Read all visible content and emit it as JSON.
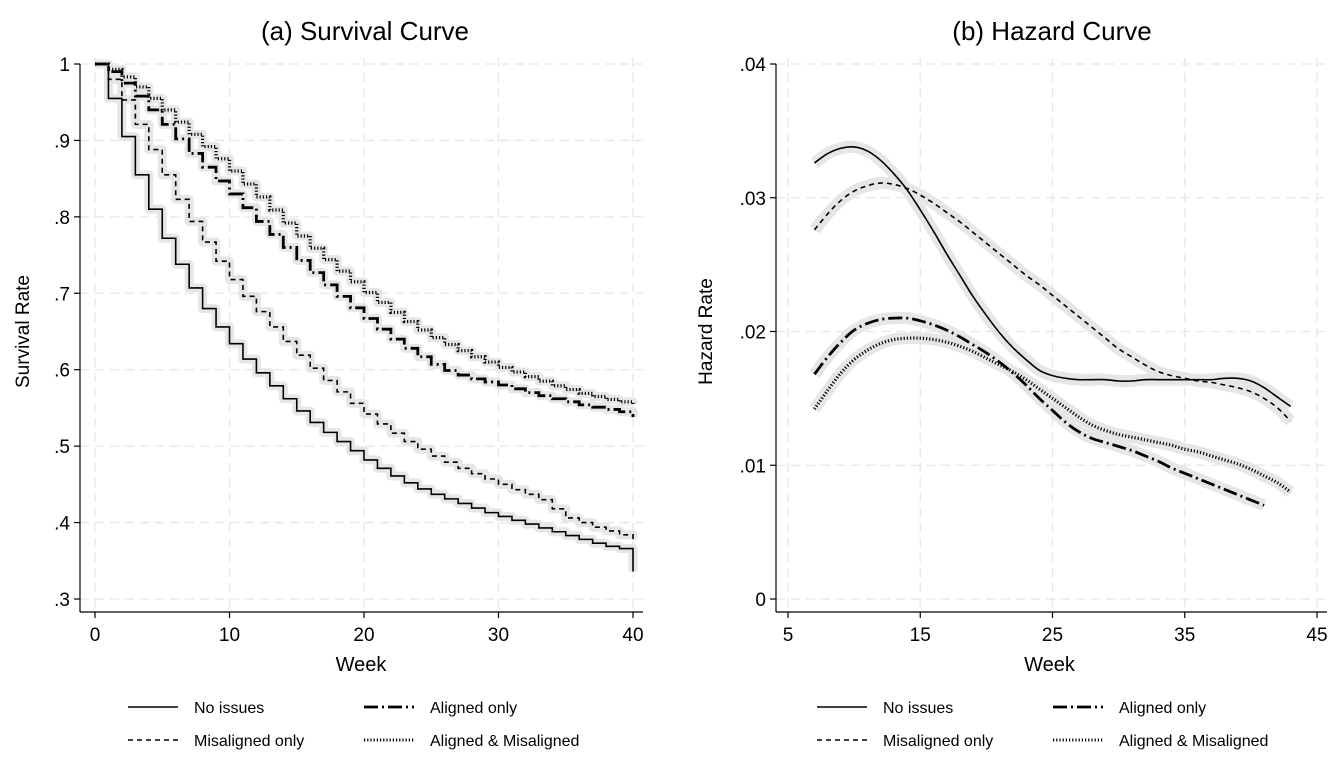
{
  "chart_data": [
    {
      "type": "line",
      "title": "(a) Survival Curve",
      "xlabel": "Week",
      "ylabel": "Survival Rate",
      "xlim": [
        0,
        40
      ],
      "ylim": [
        0.3,
        1.0
      ],
      "xticks": [
        0,
        10,
        20,
        30,
        40
      ],
      "xtick_labels": [
        "0",
        "10",
        "20",
        "30",
        "40"
      ],
      "yticks": [
        0.3,
        0.4,
        0.5,
        0.6,
        0.7,
        0.8,
        0.9,
        1.0
      ],
      "ytick_labels": [
        ".3",
        ".4",
        ".5",
        ".6",
        ".7",
        ".8",
        ".9",
        "1"
      ],
      "grid": true,
      "legend_position": "bottom",
      "step": true,
      "confidence_band": true,
      "series": [
        {
          "name": "No issues",
          "style": "solid",
          "x": [
            0,
            1,
            2,
            3,
            4,
            5,
            6,
            7,
            8,
            9,
            10,
            11,
            12,
            13,
            14,
            15,
            16,
            17,
            18,
            19,
            20,
            21,
            22,
            23,
            24,
            25,
            26,
            27,
            28,
            29,
            30,
            31,
            32,
            33,
            34,
            35,
            36,
            37,
            38,
            39,
            40
          ],
          "y": [
            1.0,
            0.955,
            0.905,
            0.855,
            0.81,
            0.772,
            0.738,
            0.707,
            0.68,
            0.656,
            0.634,
            0.614,
            0.596,
            0.579,
            0.562,
            0.546,
            0.531,
            0.518,
            0.506,
            0.494,
            0.482,
            0.471,
            0.461,
            0.452,
            0.444,
            0.437,
            0.431,
            0.425,
            0.419,
            0.413,
            0.408,
            0.403,
            0.398,
            0.393,
            0.388,
            0.383,
            0.378,
            0.373,
            0.369,
            0.366,
            0.336
          ]
        },
        {
          "name": "Misaligned only",
          "style": "dashed",
          "x": [
            0,
            1,
            2,
            3,
            4,
            5,
            6,
            7,
            8,
            9,
            10,
            11,
            12,
            13,
            14,
            15,
            16,
            17,
            18,
            19,
            20,
            21,
            22,
            23,
            24,
            25,
            26,
            27,
            28,
            29,
            30,
            31,
            32,
            33,
            34,
            35,
            36,
            37,
            38,
            39,
            40
          ],
          "y": [
            1.0,
            0.98,
            0.953,
            0.921,
            0.888,
            0.855,
            0.823,
            0.794,
            0.767,
            0.742,
            0.718,
            0.696,
            0.676,
            0.656,
            0.637,
            0.619,
            0.602,
            0.586,
            0.571,
            0.556,
            0.542,
            0.529,
            0.517,
            0.506,
            0.496,
            0.487,
            0.479,
            0.471,
            0.464,
            0.457,
            0.45,
            0.443,
            0.437,
            0.43,
            0.418,
            0.406,
            0.4,
            0.394,
            0.389,
            0.384,
            0.378
          ]
        },
        {
          "name": "Aligned only",
          "style": "longdash-dot",
          "x": [
            0,
            1,
            2,
            3,
            4,
            5,
            6,
            7,
            8,
            9,
            10,
            11,
            12,
            13,
            14,
            15,
            16,
            17,
            18,
            19,
            20,
            21,
            22,
            23,
            24,
            25,
            26,
            27,
            28,
            29,
            30,
            31,
            32,
            33,
            34,
            35,
            36,
            37,
            38,
            39,
            40
          ],
          "y": [
            1.0,
            0.99,
            0.975,
            0.958,
            0.94,
            0.921,
            0.902,
            0.883,
            0.865,
            0.847,
            0.83,
            0.812,
            0.794,
            0.777,
            0.76,
            0.743,
            0.727,
            0.711,
            0.696,
            0.681,
            0.667,
            0.653,
            0.64,
            0.628,
            0.617,
            0.607,
            0.599,
            0.593,
            0.588,
            0.584,
            0.58,
            0.575,
            0.57,
            0.566,
            0.562,
            0.558,
            0.554,
            0.551,
            0.548,
            0.545,
            0.538
          ]
        },
        {
          "name": "Aligned & Misaligned",
          "style": "dotted",
          "x": [
            0,
            1,
            2,
            3,
            4,
            5,
            6,
            7,
            8,
            9,
            10,
            11,
            12,
            13,
            14,
            15,
            16,
            17,
            18,
            19,
            20,
            21,
            22,
            23,
            24,
            25,
            26,
            27,
            28,
            29,
            30,
            31,
            32,
            33,
            34,
            35,
            36,
            37,
            38,
            39,
            40
          ],
          "y": [
            1.0,
            0.993,
            0.983,
            0.97,
            0.955,
            0.94,
            0.924,
            0.908,
            0.892,
            0.876,
            0.86,
            0.843,
            0.826,
            0.809,
            0.792,
            0.775,
            0.759,
            0.744,
            0.729,
            0.715,
            0.701,
            0.688,
            0.675,
            0.663,
            0.652,
            0.642,
            0.633,
            0.625,
            0.617,
            0.61,
            0.603,
            0.597,
            0.591,
            0.585,
            0.579,
            0.574,
            0.569,
            0.565,
            0.561,
            0.558,
            0.555
          ]
        }
      ]
    },
    {
      "type": "line",
      "title": "(b) Hazard Curve",
      "xlabel": "Week",
      "ylabel": "Hazard Rate",
      "xlim": [
        5,
        45
      ],
      "ylim": [
        0,
        0.04
      ],
      "xticks": [
        5,
        15,
        25,
        35,
        45
      ],
      "xtick_labels": [
        "5",
        "15",
        "25",
        "35",
        "45"
      ],
      "yticks": [
        0,
        0.01,
        0.02,
        0.03,
        0.04
      ],
      "ytick_labels": [
        "0",
        ".01",
        ".02",
        ".03",
        ".04"
      ],
      "grid": true,
      "legend_position": "bottom",
      "step": false,
      "confidence_band": true,
      "series": [
        {
          "name": "No issues",
          "style": "solid",
          "x": [
            7,
            8,
            9,
            10,
            11,
            12,
            13,
            14,
            15,
            16,
            17,
            18,
            19,
            20,
            21,
            22,
            23,
            24,
            25,
            26,
            27,
            28,
            29,
            30,
            31,
            32,
            33,
            34,
            35,
            36,
            37,
            38,
            39,
            40,
            41,
            42,
            43
          ],
          "y": [
            0.0326,
            0.0333,
            0.0337,
            0.0338,
            0.0335,
            0.0328,
            0.0318,
            0.0306,
            0.0291,
            0.0275,
            0.0258,
            0.0242,
            0.0226,
            0.0212,
            0.0199,
            0.0188,
            0.0179,
            0.0171,
            0.0167,
            0.0165,
            0.0164,
            0.0164,
            0.0164,
            0.0163,
            0.0163,
            0.0164,
            0.0164,
            0.0164,
            0.0164,
            0.0164,
            0.0164,
            0.0165,
            0.0165,
            0.0163,
            0.0158,
            0.0151,
            0.0144
          ]
        },
        {
          "name": "Misaligned only",
          "style": "dashed",
          "x": [
            7,
            8,
            9,
            10,
            11,
            12,
            13,
            14,
            15,
            16,
            17,
            18,
            19,
            20,
            21,
            22,
            23,
            24,
            25,
            26,
            27,
            28,
            29,
            30,
            31,
            32,
            33,
            34,
            35,
            36,
            37,
            38,
            39,
            40,
            41,
            42,
            43
          ],
          "y": [
            0.0276,
            0.0288,
            0.0298,
            0.0305,
            0.0309,
            0.0311,
            0.031,
            0.0307,
            0.0302,
            0.0296,
            0.0289,
            0.0282,
            0.0274,
            0.0266,
            0.0258,
            0.025,
            0.0242,
            0.0235,
            0.0227,
            0.0219,
            0.0211,
            0.0203,
            0.0195,
            0.0187,
            0.0181,
            0.0175,
            0.017,
            0.0167,
            0.0165,
            0.0163,
            0.0162,
            0.016,
            0.0158,
            0.0155,
            0.015,
            0.0143,
            0.0133
          ]
        },
        {
          "name": "Aligned only",
          "style": "longdash-dot",
          "x": [
            7,
            8,
            9,
            10,
            11,
            12,
            13,
            14,
            15,
            16,
            17,
            18,
            19,
            20,
            21,
            22,
            23,
            24,
            25,
            26,
            27,
            28,
            29,
            30,
            31,
            32,
            33,
            34,
            35,
            36,
            37,
            38,
            39,
            40,
            41
          ],
          "y": [
            0.0168,
            0.0181,
            0.0192,
            0.0201,
            0.0206,
            0.0209,
            0.021,
            0.021,
            0.0208,
            0.0205,
            0.0201,
            0.0196,
            0.019,
            0.0184,
            0.0177,
            0.0169,
            0.016,
            0.015,
            0.0141,
            0.0132,
            0.0125,
            0.012,
            0.0117,
            0.0114,
            0.0111,
            0.0107,
            0.0103,
            0.0098,
            0.0094,
            0.009,
            0.0086,
            0.0082,
            0.0078,
            0.0074,
            0.007
          ]
        },
        {
          "name": "Aligned & Misaligned",
          "style": "dotted",
          "x": [
            7,
            8,
            9,
            10,
            11,
            12,
            13,
            14,
            15,
            16,
            17,
            18,
            19,
            20,
            21,
            22,
            23,
            24,
            25,
            26,
            27,
            28,
            29,
            30,
            31,
            32,
            33,
            34,
            35,
            36,
            37,
            38,
            39,
            40,
            41,
            42,
            43
          ],
          "y": [
            0.0142,
            0.0156,
            0.0169,
            0.0179,
            0.0186,
            0.0191,
            0.0194,
            0.0195,
            0.0195,
            0.0194,
            0.0192,
            0.0189,
            0.0185,
            0.018,
            0.0175,
            0.017,
            0.0164,
            0.0157,
            0.015,
            0.0143,
            0.0136,
            0.013,
            0.0126,
            0.0123,
            0.0121,
            0.0119,
            0.0117,
            0.0115,
            0.0112,
            0.011,
            0.0107,
            0.0104,
            0.0101,
            0.0097,
            0.0092,
            0.0087,
            0.008
          ]
        }
      ]
    }
  ],
  "legend": {
    "items": [
      {
        "name": "No issues",
        "style": "solid"
      },
      {
        "name": "Aligned only",
        "style": "longdash-dot"
      },
      {
        "name": "Misaligned only",
        "style": "dashed"
      },
      {
        "name": "Aligned & Misaligned",
        "style": "dotted"
      }
    ]
  },
  "colors": {
    "line": "#000000",
    "band": "#e6e6e6",
    "grid": "#e6e6e6",
    "axis": "#000000"
  }
}
